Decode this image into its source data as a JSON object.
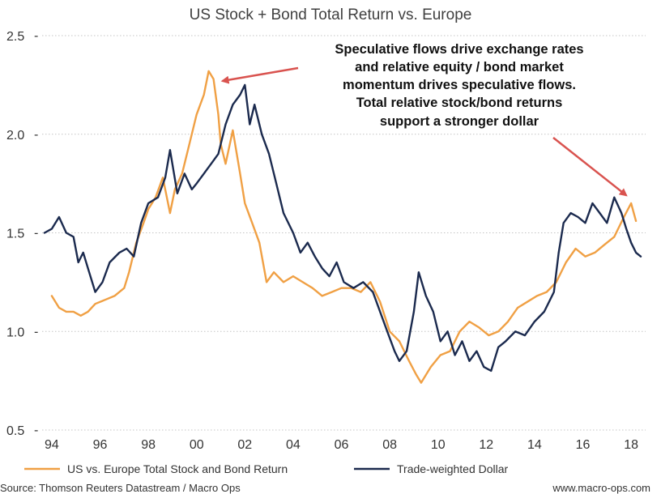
{
  "chart_data": {
    "type": "line",
    "title": "US Stock + Bond Total Return vs. Europe",
    "xlabel": "",
    "ylabel": "",
    "xlim": [
      1993.6,
      2018.6
    ],
    "ylim": [
      0.5,
      2.5
    ],
    "yticks": [
      0.5,
      1.0,
      1.5,
      2.0,
      2.5
    ],
    "ytick_labels": [
      "0.5",
      "1.0",
      "1.5",
      "2.0",
      "2.5"
    ],
    "xticks": [
      1994,
      1996,
      1998,
      2000,
      2002,
      2004,
      2006,
      2008,
      2010,
      2012,
      2014,
      2016,
      2018
    ],
    "xtick_labels": [
      "94",
      "96",
      "98",
      "00",
      "02",
      "04",
      "06",
      "08",
      "10",
      "12",
      "14",
      "16",
      "18"
    ],
    "grid": true,
    "legend_position": "bottom",
    "series": [
      {
        "name": "US vs. Europe Total Stock and Bond Return",
        "color": "#f0a044",
        "x": [
          1994.0,
          1994.3,
          1994.6,
          1994.9,
          1995.2,
          1995.5,
          1995.8,
          1996.2,
          1996.6,
          1997.0,
          1997.2,
          1997.5,
          1997.8,
          1998.0,
          1998.3,
          1998.6,
          1998.9,
          1999.1,
          1999.4,
          1999.7,
          2000.0,
          2000.3,
          2000.5,
          2000.7,
          2000.9,
          2001.0,
          2001.2,
          2001.5,
          2001.8,
          2002.0,
          2002.3,
          2002.6,
          2002.9,
          2003.2,
          2003.6,
          2004.0,
          2004.4,
          2004.8,
          2005.2,
          2005.6,
          2006.0,
          2006.4,
          2006.8,
          2007.2,
          2007.6,
          2008.0,
          2008.4,
          2008.8,
          2009.1,
          2009.3,
          2009.7,
          2010.1,
          2010.5,
          2010.9,
          2011.3,
          2011.7,
          2012.1,
          2012.5,
          2012.9,
          2013.3,
          2013.7,
          2014.1,
          2014.5,
          2014.9,
          2015.3,
          2015.7,
          2016.1,
          2016.5,
          2016.9,
          2017.3,
          2017.7,
          2018.0,
          2018.2
        ],
        "values": [
          1.18,
          1.12,
          1.1,
          1.1,
          1.08,
          1.1,
          1.14,
          1.16,
          1.18,
          1.22,
          1.3,
          1.45,
          1.55,
          1.62,
          1.68,
          1.78,
          1.6,
          1.72,
          1.8,
          1.95,
          2.1,
          2.2,
          2.32,
          2.28,
          2.1,
          1.95,
          1.85,
          2.02,
          1.8,
          1.65,
          1.55,
          1.45,
          1.25,
          1.3,
          1.25,
          1.28,
          1.25,
          1.22,
          1.18,
          1.2,
          1.22,
          1.22,
          1.2,
          1.25,
          1.15,
          1.0,
          0.95,
          0.85,
          0.78,
          0.74,
          0.82,
          0.88,
          0.9,
          1.0,
          1.05,
          1.02,
          0.98,
          1.0,
          1.05,
          1.12,
          1.15,
          1.18,
          1.2,
          1.25,
          1.35,
          1.42,
          1.38,
          1.4,
          1.44,
          1.48,
          1.58,
          1.65,
          1.56
        ]
      },
      {
        "name": "Trade-weighted Dollar",
        "color": "#1b2a4e",
        "x": [
          1993.7,
          1994.0,
          1994.3,
          1994.6,
          1994.9,
          1995.1,
          1995.3,
          1995.5,
          1995.8,
          1996.1,
          1996.4,
          1996.8,
          1997.1,
          1997.4,
          1997.7,
          1998.0,
          1998.4,
          1998.7,
          1998.9,
          1999.2,
          1999.5,
          1999.8,
          2000.0,
          2000.3,
          2000.6,
          2000.9,
          2001.2,
          2001.5,
          2001.8,
          2002.0,
          2002.2,
          2002.4,
          2002.7,
          2003.0,
          2003.3,
          2003.6,
          2004.0,
          2004.3,
          2004.6,
          2004.9,
          2005.2,
          2005.5,
          2005.8,
          2006.1,
          2006.5,
          2006.9,
          2007.3,
          2007.6,
          2007.9,
          2008.2,
          2008.4,
          2008.7,
          2009.0,
          2009.2,
          2009.5,
          2009.8,
          2010.1,
          2010.4,
          2010.7,
          2011.0,
          2011.3,
          2011.6,
          2011.9,
          2012.2,
          2012.5,
          2012.8,
          2013.2,
          2013.6,
          2014.0,
          2014.4,
          2014.8,
          2015.0,
          2015.2,
          2015.5,
          2015.8,
          2016.1,
          2016.4,
          2016.7,
          2017.0,
          2017.3,
          2017.6,
          2017.8,
          2018.0,
          2018.2,
          2018.4
        ],
        "values": [
          1.5,
          1.52,
          1.58,
          1.5,
          1.48,
          1.35,
          1.4,
          1.32,
          1.2,
          1.25,
          1.35,
          1.4,
          1.42,
          1.38,
          1.55,
          1.65,
          1.68,
          1.78,
          1.92,
          1.7,
          1.8,
          1.72,
          1.75,
          1.8,
          1.85,
          1.9,
          2.05,
          2.15,
          2.2,
          2.25,
          2.05,
          2.15,
          2.0,
          1.9,
          1.75,
          1.6,
          1.5,
          1.4,
          1.45,
          1.38,
          1.32,
          1.28,
          1.35,
          1.25,
          1.22,
          1.25,
          1.2,
          1.1,
          1.0,
          0.9,
          0.85,
          0.9,
          1.1,
          1.3,
          1.18,
          1.1,
          0.95,
          1.0,
          0.88,
          0.95,
          0.85,
          0.9,
          0.82,
          0.8,
          0.92,
          0.95,
          1.0,
          0.98,
          1.05,
          1.1,
          1.2,
          1.4,
          1.55,
          1.6,
          1.58,
          1.55,
          1.65,
          1.6,
          1.55,
          1.68,
          1.6,
          1.52,
          1.45,
          1.4,
          1.38
        ]
      }
    ],
    "annotation": {
      "lines": [
        "Speculative flows drive exchange rates",
        "and relative equity / bond market",
        "momentum drives speculative flows.",
        "Total relative stock/bond returns",
        "support a stronger dollar"
      ],
      "arrow_targets": [
        {
          "x": 2000.8,
          "y": 2.27
        },
        {
          "x": 2017.8,
          "y": 1.69
        }
      ],
      "arrow_color": "#d9534f"
    },
    "source": "Source: Thomson Reuters Datastream / Macro Ops",
    "website": "www.macro-ops.com"
  }
}
